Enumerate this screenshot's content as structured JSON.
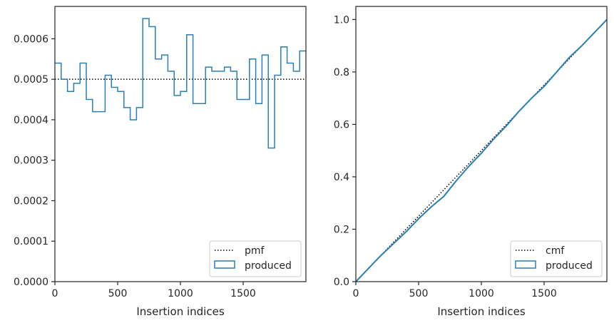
{
  "chart_data": [
    {
      "type": "step",
      "xlabel": "Insertion indices",
      "ylabel": "",
      "xlim": [
        0,
        2000
      ],
      "ylim": [
        0,
        0.00068
      ],
      "xticks": [
        0,
        500,
        1000,
        1500
      ],
      "xtick_labels": [
        "0",
        "500",
        "1000",
        "1500"
      ],
      "yticks": [
        0,
        0.0001,
        0.0002,
        0.0003,
        0.0004,
        0.0005,
        0.0006
      ],
      "ytick_labels": [
        "0.0000",
        "0.0001",
        "0.0002",
        "0.0003",
        "0.0004",
        "0.0005",
        "0.0006"
      ],
      "legend_position": "lower-right",
      "series": [
        {
          "name": "pmf",
          "style": "dotted",
          "color": "#000000",
          "x": [
            0,
            2000
          ],
          "y": [
            0.0005,
            0.0005
          ]
        },
        {
          "name": "produced",
          "style": "step",
          "color": "#2a7fb5",
          "bin_edges": [
            0,
            50,
            100,
            150,
            200,
            250,
            300,
            350,
            400,
            450,
            500,
            550,
            600,
            650,
            700,
            750,
            800,
            850,
            900,
            950,
            1000,
            1050,
            1100,
            1150,
            1200,
            1250,
            1300,
            1350,
            1400,
            1450,
            1500,
            1550,
            1600,
            1650,
            1700,
            1750,
            1800,
            1850,
            1900,
            1950,
            2000
          ],
          "values": [
            0.00054,
            0.0005,
            0.00047,
            0.00049,
            0.00054,
            0.00045,
            0.00042,
            0.00042,
            0.00051,
            0.00048,
            0.00047,
            0.00043,
            0.0004,
            0.00043,
            0.00065,
            0.00063,
            0.00055,
            0.00056,
            0.00052,
            0.00046,
            0.00047,
            0.00061,
            0.00044,
            0.00044,
            0.00053,
            0.00052,
            0.00052,
            0.00053,
            0.00052,
            0.00045,
            0.00045,
            0.00055,
            0.00044,
            0.00056,
            0.00033,
            0.00051,
            0.00058,
            0.00054,
            0.00052,
            0.00057
          ]
        }
      ]
    },
    {
      "type": "line",
      "xlabel": "Insertion indices",
      "ylabel": "",
      "xlim": [
        0,
        2000
      ],
      "ylim": [
        0,
        1.05
      ],
      "xticks": [
        0,
        500,
        1000,
        1500
      ],
      "xtick_labels": [
        "0",
        "500",
        "1000",
        "1500"
      ],
      "yticks": [
        0,
        0.2,
        0.4,
        0.6,
        0.8,
        1.0
      ],
      "ytick_labels": [
        "0.0",
        "0.2",
        "0.4",
        "0.6",
        "0.8",
        "1.0"
      ],
      "legend_position": "lower-right",
      "series": [
        {
          "name": "cmf",
          "style": "dotted",
          "color": "#000000",
          "x": [
            0,
            2000
          ],
          "y": [
            0,
            1.0
          ]
        },
        {
          "name": "produced",
          "style": "line",
          "color": "#2a7fb5",
          "x": [
            0,
            100,
            200,
            300,
            400,
            500,
            600,
            700,
            800,
            900,
            1000,
            1100,
            1200,
            1300,
            1400,
            1500,
            1600,
            1700,
            1800,
            1900,
            2000
          ],
          "y": [
            0,
            0.05,
            0.1,
            0.145,
            0.19,
            0.24,
            0.285,
            0.325,
            0.385,
            0.44,
            0.49,
            0.545,
            0.595,
            0.65,
            0.7,
            0.745,
            0.8,
            0.855,
            0.9,
            0.95,
            1.0
          ]
        }
      ]
    }
  ]
}
